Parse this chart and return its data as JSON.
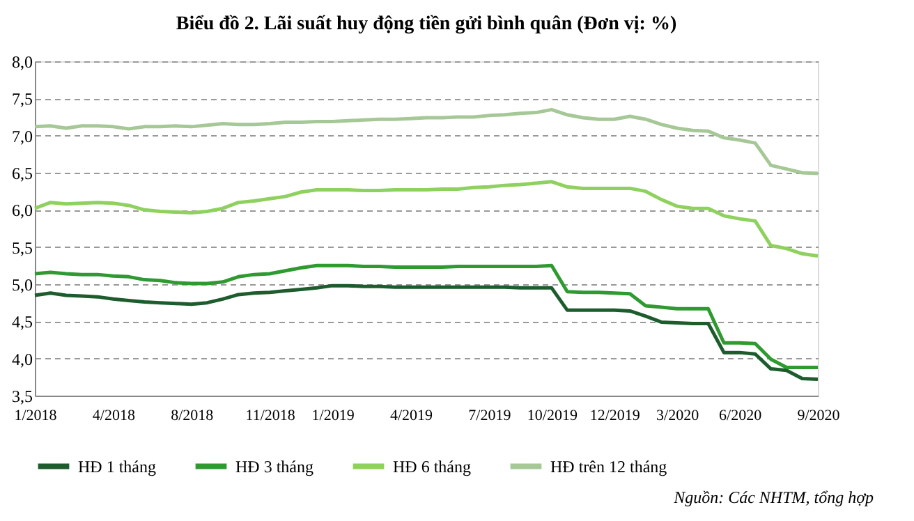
{
  "chart_data": {
    "type": "line",
    "title": "Biểu đồ 2. Lãi suất huy động tiền gửi bình quân (Đơn vị: %)",
    "categories": [
      "1/2018",
      null,
      null,
      null,
      null,
      "4/2018",
      null,
      null,
      null,
      null,
      "8/2018",
      null,
      null,
      null,
      null,
      "11/2018",
      null,
      null,
      null,
      "1/2019",
      null,
      null,
      null,
      null,
      "4/2019",
      null,
      null,
      null,
      null,
      "7/2019",
      null,
      null,
      null,
      "10/2019",
      null,
      null,
      null,
      "12/2019",
      null,
      null,
      null,
      "3/2020",
      null,
      null,
      null,
      "6/2020",
      null,
      null,
      null,
      null,
      "9/2020"
    ],
    "series": [
      {
        "name": "HĐ 1 tháng",
        "color": "#1d5c2c",
        "values": [
          4.85,
          4.88,
          4.85,
          4.84,
          4.83,
          4.8,
          4.78,
          4.76,
          4.75,
          4.74,
          4.73,
          4.75,
          4.8,
          4.86,
          4.88,
          4.89,
          4.91,
          4.93,
          4.95,
          4.98,
          4.98,
          4.97,
          4.97,
          4.96,
          4.96,
          4.96,
          4.96,
          4.96,
          4.96,
          4.96,
          4.96,
          4.95,
          4.95,
          4.95,
          4.65,
          4.65,
          4.65,
          4.65,
          4.64,
          4.57,
          4.49,
          4.48,
          4.47,
          4.47,
          4.08,
          4.08,
          4.06,
          3.86,
          3.84,
          3.73,
          3.72
        ]
      },
      {
        "name": "HĐ 3 tháng",
        "color": "#2e9a30",
        "values": [
          5.14,
          5.16,
          5.14,
          5.13,
          5.13,
          5.11,
          5.1,
          5.06,
          5.05,
          5.02,
          5.01,
          5.01,
          5.03,
          5.1,
          5.13,
          5.14,
          5.18,
          5.22,
          5.25,
          5.25,
          5.25,
          5.24,
          5.24,
          5.23,
          5.23,
          5.23,
          5.23,
          5.24,
          5.24,
          5.24,
          5.24,
          5.24,
          5.24,
          5.25,
          4.9,
          4.89,
          4.89,
          4.88,
          4.87,
          4.71,
          4.69,
          4.67,
          4.67,
          4.67,
          4.21,
          4.21,
          4.2,
          3.99,
          3.88,
          3.88,
          3.88
        ]
      },
      {
        "name": "HĐ 6 tháng",
        "color": "#8fd15e",
        "values": [
          6.02,
          6.1,
          6.08,
          6.09,
          6.1,
          6.09,
          6.06,
          6.0,
          5.98,
          5.97,
          5.96,
          5.98,
          6.02,
          6.1,
          6.12,
          6.15,
          6.18,
          6.24,
          6.27,
          6.27,
          6.27,
          6.26,
          6.26,
          6.27,
          6.27,
          6.27,
          6.28,
          6.28,
          6.3,
          6.31,
          6.33,
          6.34,
          6.36,
          6.38,
          6.31,
          6.29,
          6.29,
          6.29,
          6.29,
          6.25,
          6.14,
          6.05,
          6.02,
          6.02,
          5.92,
          5.88,
          5.85,
          5.52,
          5.48,
          5.41,
          5.38
        ]
      },
      {
        "name": "HĐ trên 12 tháng",
        "color": "#a6c897",
        "values": [
          7.12,
          7.13,
          7.1,
          7.13,
          7.13,
          7.12,
          7.09,
          7.12,
          7.12,
          7.13,
          7.12,
          7.14,
          7.16,
          7.15,
          7.15,
          7.16,
          7.18,
          7.18,
          7.19,
          7.19,
          7.2,
          7.21,
          7.22,
          7.22,
          7.23,
          7.24,
          7.24,
          7.25,
          7.25,
          7.27,
          7.28,
          7.3,
          7.31,
          7.35,
          7.28,
          7.24,
          7.22,
          7.22,
          7.26,
          7.22,
          7.15,
          7.1,
          7.07,
          7.06,
          6.97,
          6.94,
          6.9,
          6.6,
          6.55,
          6.5,
          6.49
        ]
      }
    ],
    "ylim": [
      3.5,
      8.0
    ],
    "yticks": [
      {
        "value": 3.5,
        "label": "3,5"
      },
      {
        "value": 4.0,
        "label": "4,0"
      },
      {
        "value": 4.5,
        "label": "4,5"
      },
      {
        "value": 5.0,
        "label": "5,0"
      },
      {
        "value": 5.5,
        "label": "5,5"
      },
      {
        "value": 6.0,
        "label": "6,0"
      },
      {
        "value": 6.5,
        "label": "6,5"
      },
      {
        "value": 7.0,
        "label": "7,0"
      },
      {
        "value": 7.5,
        "label": "7,5"
      },
      {
        "value": 8.0,
        "label": "8,0"
      }
    ],
    "grid": "y",
    "legend": "bottom",
    "marker": "none",
    "line_style": "solid",
    "annotations": [
      "Nguồn: Các NHTM, tổng hợp"
    ]
  }
}
